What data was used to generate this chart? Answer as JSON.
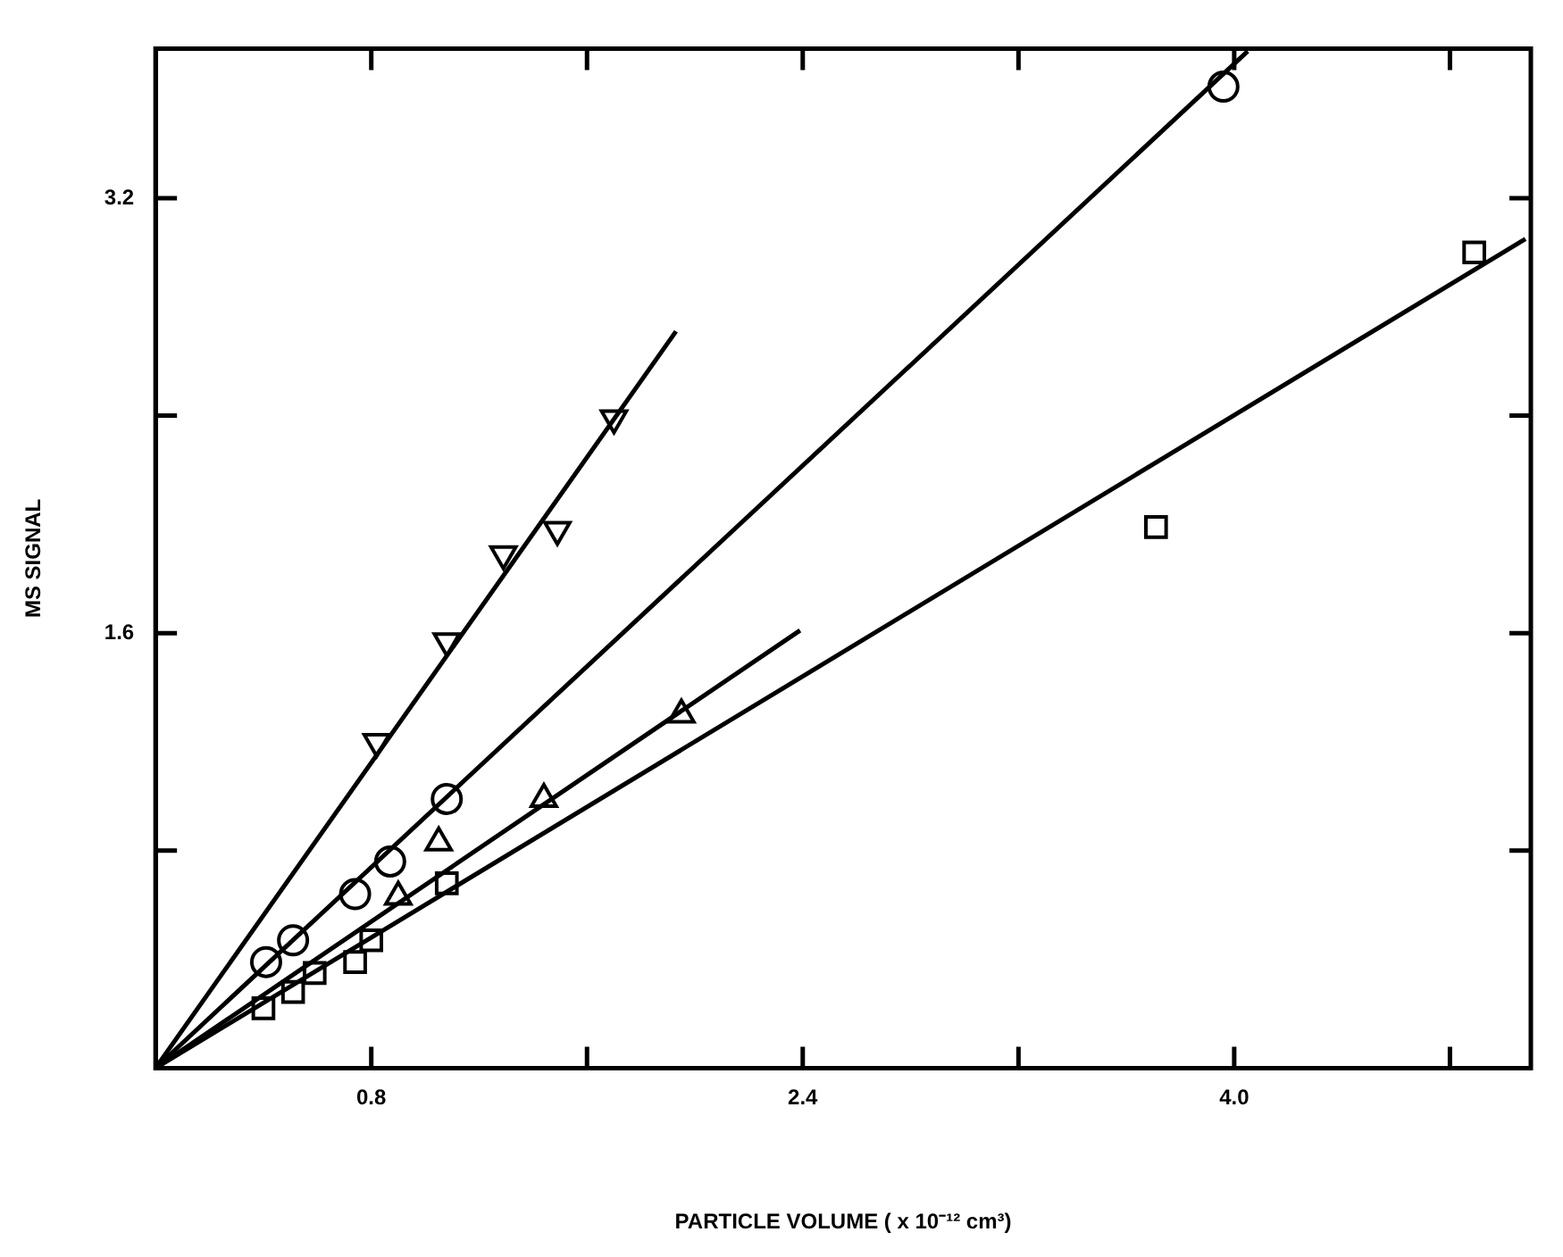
{
  "chart_data": {
    "type": "scatter",
    "xlabel": "PARTICLE VOLUME ( x 10⁻¹² cm³)",
    "ylabel": "MS SIGNAL",
    "xlim": [
      0,
      5.1
    ],
    "ylim": [
      0,
      3.75
    ],
    "xticks": [
      {
        "value": 0.8,
        "label": "0.8"
      },
      {
        "value": 1.6,
        "label": null
      },
      {
        "value": 2.4,
        "label": "2.4"
      },
      {
        "value": 3.2,
        "label": null
      },
      {
        "value": 4.0,
        "label": "4.0"
      },
      {
        "value": 4.8,
        "label": null
      }
    ],
    "yticks": [
      {
        "value": 0.8,
        "label": null
      },
      {
        "value": 1.6,
        "label": "1.6"
      },
      {
        "value": 2.4,
        "label": null
      },
      {
        "value": 3.2,
        "label": "3.2"
      }
    ],
    "grid": false,
    "legend": false,
    "series": [
      {
        "marker": "triangle-down",
        "color": "#000000",
        "x": [
          0.82,
          1.08,
          1.29,
          1.49,
          1.7
        ],
        "values": [
          1.2,
          1.57,
          1.89,
          1.98,
          2.39
        ]
      },
      {
        "marker": "circle",
        "color": "#000000",
        "x": [
          0.41,
          0.51,
          0.74,
          0.87,
          1.08,
          3.96
        ],
        "values": [
          0.39,
          0.47,
          0.64,
          0.76,
          0.99,
          3.61
        ]
      },
      {
        "marker": "triangle",
        "color": "#000000",
        "x": [
          0.9,
          1.05,
          1.44,
          1.95
        ],
        "values": [
          0.63,
          0.83,
          0.99,
          1.3
        ]
      },
      {
        "marker": "square",
        "color": "#000000",
        "x": [
          0.4,
          0.51,
          0.59,
          0.74,
          0.8,
          1.08,
          3.71,
          4.89
        ],
        "values": [
          0.22,
          0.28,
          0.35,
          0.39,
          0.47,
          0.68,
          1.99,
          3.0
        ]
      },
      {
        "type": "line",
        "marker": "none",
        "line_style": "solid",
        "color": "#000000",
        "x": [
          0,
          1.93
        ],
        "values": [
          0,
          2.71
        ]
      },
      {
        "type": "line",
        "marker": "none",
        "line_style": "solid",
        "color": "#000000",
        "x": [
          0,
          4.05
        ],
        "values": [
          0,
          3.74
        ]
      },
      {
        "type": "line",
        "marker": "none",
        "line_style": "solid",
        "color": "#000000",
        "x": [
          0,
          2.39
        ],
        "values": [
          0,
          1.61
        ]
      },
      {
        "type": "line",
        "marker": "none",
        "line_style": "solid",
        "color": "#000000",
        "x": [
          0,
          5.08
        ],
        "values": [
          0,
          3.05
        ]
      }
    ]
  }
}
